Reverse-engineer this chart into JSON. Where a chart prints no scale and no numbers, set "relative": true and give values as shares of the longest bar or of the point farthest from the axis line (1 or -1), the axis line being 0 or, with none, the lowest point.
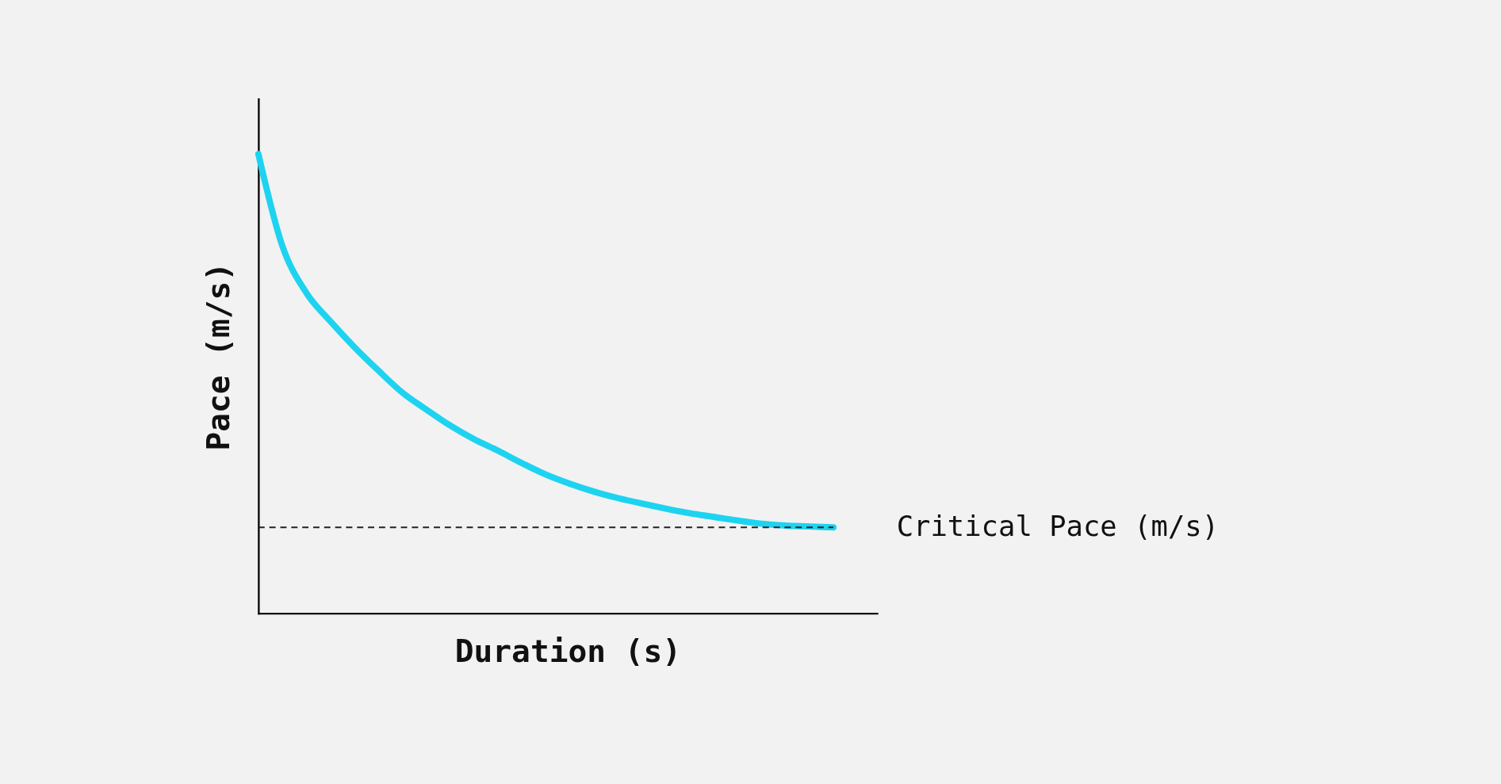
{
  "chart_data": {
    "type": "line",
    "relative": true,
    "xlabel": "Duration (s)",
    "ylabel": "Pace (m/s)",
    "tick_labels": false,
    "grid": false,
    "line_style": "solid",
    "categories": [
      null,
      null,
      null,
      null,
      null,
      null,
      null,
      null,
      null,
      null,
      null,
      null,
      null,
      null,
      null,
      null,
      null,
      null,
      null,
      null,
      null,
      null,
      null,
      null,
      null
    ],
    "series": [
      {
        "color": "#1ed3f0",
        "values": [
          1.0,
          0.8,
          0.698,
          0.636,
          0.58,
          0.529,
          0.481,
          0.444,
          0.409,
          0.379,
          0.354,
          0.327,
          0.302,
          0.282,
          0.265,
          0.251,
          0.239,
          0.228,
          0.218,
          0.21,
          0.202,
          0.195,
          0.191,
          0.189,
          0.187
        ]
      }
    ],
    "ref_lines": [
      {
        "axis": "y",
        "value": 0.187,
        "label": "Critical Pace (m/s)",
        "color": "#222222",
        "line_style": "dashed"
      }
    ]
  }
}
